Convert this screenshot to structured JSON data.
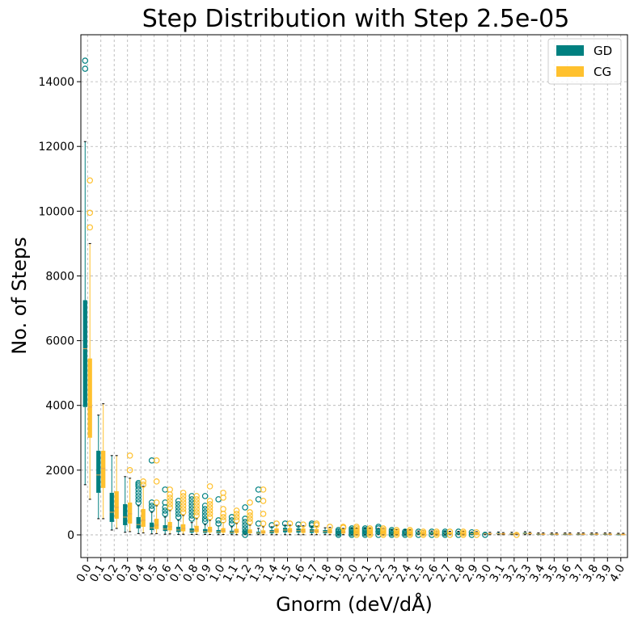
{
  "chart_data": {
    "type": "box",
    "title": "Step Distribution with Step 2.5e-05",
    "xlabel": "Gnorm (deV/dÅ)",
    "ylabel": "No. of Steps",
    "ylim": [
      -700,
      15450
    ],
    "yticks": [
      0,
      2000,
      4000,
      6000,
      8000,
      10000,
      12000,
      14000
    ],
    "categories": [
      "0.0",
      "0.1",
      "0.2",
      "0.3",
      "0.4",
      "0.5",
      "0.6",
      "0.7",
      "0.8",
      "0.9",
      "1.0",
      "1.1",
      "1.2",
      "1.3",
      "1.4",
      "1.5",
      "1.6",
      "1.7",
      "1.8",
      "1.9",
      "2.0",
      "2.1",
      "2.2",
      "2.3",
      "2.4",
      "2.5",
      "2.6",
      "2.7",
      "2.8",
      "2.9",
      "3.0",
      "3.1",
      "3.2",
      "3.3",
      "3.4",
      "3.5",
      "3.6",
      "3.7",
      "3.8",
      "3.9",
      "4.0"
    ],
    "grid": true,
    "legend": "top-right",
    "series": [
      {
        "name": "GD",
        "color": "#008080",
        "boxes": [
          {
            "min": 1550,
            "q1": 3950,
            "median": 5750,
            "q3": 7250,
            "max": 12150,
            "outliers": [
              14400,
              14650
            ]
          },
          {
            "min": 500,
            "q1": 1300,
            "median": 1850,
            "q3": 2600,
            "max": 3700,
            "outliers": []
          },
          {
            "min": 150,
            "q1": 400,
            "median": 700,
            "q3": 1300,
            "max": 2450,
            "outliers": []
          },
          {
            "min": 80,
            "q1": 300,
            "median": 550,
            "q3": 950,
            "max": 1800,
            "outliers": []
          },
          {
            "min": 40,
            "q1": 200,
            "median": 320,
            "q3": 550,
            "max": 900,
            "outliers": [
              1000,
              1100,
              1200,
              1300,
              1400,
              1500,
              1550,
              1600
            ]
          },
          {
            "min": 30,
            "q1": 150,
            "median": 220,
            "q3": 380,
            "max": 700,
            "outliers": [
              800,
              900,
              1000,
              2300
            ]
          },
          {
            "min": 20,
            "q1": 120,
            "median": 180,
            "q3": 300,
            "max": 550,
            "outliers": [
              650,
              750,
              850,
              1000,
              1400
            ]
          },
          {
            "min": 15,
            "q1": 90,
            "median": 150,
            "q3": 250,
            "max": 450,
            "outliers": [
              550,
              650,
              750,
              850,
              950,
              1050
            ]
          },
          {
            "min": 10,
            "q1": 70,
            "median": 120,
            "q3": 200,
            "max": 380,
            "outliers": [
              500,
              600,
              700,
              800,
              900,
              1000,
              1100,
              1200
            ]
          },
          {
            "min": 10,
            "q1": 60,
            "median": 100,
            "q3": 180,
            "max": 320,
            "outliers": [
              420,
              500,
              600,
              700,
              800,
              900,
              1200
            ]
          },
          {
            "min": 5,
            "q1": 50,
            "median": 90,
            "q3": 150,
            "max": 280,
            "outliers": [
              350,
              450,
              1100
            ]
          },
          {
            "min": 5,
            "q1": 40,
            "median": 80,
            "q3": 130,
            "max": 250,
            "outliers": [
              350,
              450,
              550
            ]
          },
          {
            "min": 5,
            "q1": 35,
            "median": 70,
            "q3": 120,
            "max": 220,
            "outliers": [
              0,
              100,
              200,
              300,
              400,
              500,
              850
            ]
          },
          {
            "min": 5,
            "q1": 30,
            "median": 60,
            "q3": 100,
            "max": 200,
            "outliers": [
              350,
              1100,
              1400
            ]
          },
          {
            "min": 5,
            "q1": 50,
            "median": 100,
            "q3": 150,
            "max": 250,
            "outliers": [
              300
            ]
          },
          {
            "min": 5,
            "q1": 80,
            "median": 150,
            "q3": 220,
            "max": 300,
            "outliers": [
              350
            ]
          },
          {
            "min": 5,
            "q1": 70,
            "median": 130,
            "q3": 200,
            "max": 280,
            "outliers": [
              320
            ]
          },
          {
            "min": 5,
            "q1": 60,
            "median": 120,
            "q3": 180,
            "max": 250,
            "outliers": [
              300,
              350
            ]
          },
          {
            "min": 5,
            "q1": 50,
            "median": 100,
            "q3": 150,
            "max": 220,
            "outliers": []
          },
          {
            "min": 5,
            "q1": 40,
            "median": 80,
            "q3": 120,
            "max": 180,
            "outliers": [
              0,
              50,
              100,
              150
            ]
          },
          {
            "min": 5,
            "q1": 40,
            "median": 80,
            "q3": 130,
            "max": 200,
            "outliers": [
              0,
              50,
              100,
              150,
              200
            ]
          },
          {
            "min": 5,
            "q1": 40,
            "median": 80,
            "q3": 130,
            "max": 200,
            "outliers": [
              0,
              50,
              100,
              150,
              200
            ]
          },
          {
            "min": 5,
            "q1": 40,
            "median": 80,
            "q3": 130,
            "max": 200,
            "outliers": [
              0,
              100,
              200,
              250
            ]
          },
          {
            "min": 5,
            "q1": 30,
            "median": 60,
            "q3": 100,
            "max": 150,
            "outliers": [
              0,
              50,
              100,
              150
            ]
          },
          {
            "min": 5,
            "q1": 30,
            "median": 60,
            "q3": 100,
            "max": 150,
            "outliers": [
              0,
              50,
              100
            ]
          },
          {
            "min": 5,
            "q1": 30,
            "median": 50,
            "q3": 80,
            "max": 120,
            "outliers": [
              0,
              100
            ]
          },
          {
            "min": 5,
            "q1": 30,
            "median": 50,
            "q3": 80,
            "max": 120,
            "outliers": [
              0,
              100
            ]
          },
          {
            "min": 5,
            "q1": 25,
            "median": 45,
            "q3": 70,
            "max": 110,
            "outliers": [
              0,
              50,
              100
            ]
          },
          {
            "min": 5,
            "q1": 25,
            "median": 45,
            "q3": 70,
            "max": 110,
            "outliers": [
              0,
              100
            ]
          },
          {
            "min": 5,
            "q1": 20,
            "median": 40,
            "q3": 60,
            "max": 90,
            "outliers": [
              0,
              80
            ]
          },
          {
            "min": 5,
            "q1": 20,
            "median": 35,
            "q3": 55,
            "max": 80,
            "outliers": [
              0
            ]
          },
          {
            "min": 5,
            "q1": 20,
            "median": 35,
            "q3": 60,
            "max": 90,
            "outliers": []
          },
          {
            "min": 5,
            "q1": 20,
            "median": 30,
            "q3": 50,
            "max": 80,
            "outliers": []
          },
          {
            "min": 5,
            "q1": 25,
            "median": 45,
            "q3": 70,
            "max": 100,
            "outliers": []
          },
          {
            "min": 5,
            "q1": 15,
            "median": 25,
            "q3": 40,
            "max": 60,
            "outliers": []
          },
          {
            "min": 5,
            "q1": 15,
            "median": 25,
            "q3": 40,
            "max": 60,
            "outliers": []
          },
          {
            "min": 5,
            "q1": 15,
            "median": 25,
            "q3": 40,
            "max": 60,
            "outliers": []
          },
          {
            "min": 5,
            "q1": 15,
            "median": 25,
            "q3": 40,
            "max": 60,
            "outliers": []
          },
          {
            "min": 5,
            "q1": 15,
            "median": 25,
            "q3": 40,
            "max": 60,
            "outliers": []
          },
          {
            "min": 5,
            "q1": 15,
            "median": 25,
            "q3": 40,
            "max": 60,
            "outliers": []
          },
          {
            "min": 5,
            "q1": 10,
            "median": 20,
            "q3": 30,
            "max": 50,
            "outliers": []
          }
        ]
      },
      {
        "name": "CG",
        "color": "#ffc12e",
        "boxes": [
          {
            "min": 1100,
            "q1": 3000,
            "median": 3950,
            "q3": 5450,
            "max": 9000,
            "outliers": [
              9500,
              9950,
              10950
            ]
          },
          {
            "min": 500,
            "q1": 1450,
            "median": 2050,
            "q3": 2600,
            "max": 4050,
            "outliers": []
          },
          {
            "min": 200,
            "q1": 500,
            "median": 850,
            "q3": 1350,
            "max": 2450,
            "outliers": []
          },
          {
            "min": 100,
            "q1": 350,
            "median": 650,
            "q3": 1000,
            "max": 1750,
            "outliers": [
              2000,
              2450
            ]
          },
          {
            "min": 60,
            "q1": 250,
            "median": 450,
            "q3": 800,
            "max": 1500,
            "outliers": [
              1550,
              1650
            ]
          },
          {
            "min": 40,
            "q1": 180,
            "median": 300,
            "q3": 500,
            "max": 900,
            "outliers": [
              1000,
              1650,
              2300
            ]
          },
          {
            "min": 30,
            "q1": 140,
            "median": 250,
            "q3": 400,
            "max": 750,
            "outliers": [
              850,
              950,
              1050,
              1150,
              1250,
              1400
            ]
          },
          {
            "min": 20,
            "q1": 110,
            "median": 200,
            "q3": 330,
            "max": 600,
            "outliers": [
              700,
              800,
              900,
              1000,
              1100,
              1200,
              1300
            ]
          },
          {
            "min": 15,
            "q1": 90,
            "median": 170,
            "q3": 280,
            "max": 500,
            "outliers": [
              600,
              700,
              800,
              900,
              1000,
              1100,
              1200
            ]
          },
          {
            "min": 10,
            "q1": 80,
            "median": 150,
            "q3": 250,
            "max": 450,
            "outliers": [
              550,
              650,
              750,
              850,
              950,
              1050,
              1500
            ]
          },
          {
            "min": 10,
            "q1": 70,
            "median": 130,
            "q3": 210,
            "max": 380,
            "outliers": [
              450,
              550,
              650,
              800,
              1150,
              1300
            ]
          },
          {
            "min": 5,
            "q1": 60,
            "median": 110,
            "q3": 190,
            "max": 350,
            "outliers": [
              450,
              550,
              650,
              750
            ]
          },
          {
            "min": 5,
            "q1": 50,
            "median": 100,
            "q3": 170,
            "max": 300,
            "outliers": [
              400,
              500,
              600,
              700,
              1000
            ]
          },
          {
            "min": 5,
            "q1": 40,
            "median": 80,
            "q3": 140,
            "max": 250,
            "outliers": [
              350,
              650,
              1050,
              1400
            ]
          },
          {
            "min": 5,
            "q1": 60,
            "median": 120,
            "q3": 200,
            "max": 300,
            "outliers": [
              350
            ]
          },
          {
            "min": 5,
            "q1": 70,
            "median": 130,
            "q3": 210,
            "max": 300,
            "outliers": [
              350
            ]
          },
          {
            "min": 5,
            "q1": 60,
            "median": 120,
            "q3": 200,
            "max": 280,
            "outliers": [
              320
            ]
          },
          {
            "min": 5,
            "q1": 60,
            "median": 110,
            "q3": 180,
            "max": 260,
            "outliers": [
              300,
              350
            ]
          },
          {
            "min": 5,
            "q1": 50,
            "median": 100,
            "q3": 160,
            "max": 230,
            "outliers": [
              250
            ]
          },
          {
            "min": 5,
            "q1": 40,
            "median": 90,
            "q3": 140,
            "max": 200,
            "outliers": [
              220,
              250
            ]
          },
          {
            "min": 5,
            "q1": 40,
            "median": 90,
            "q3": 140,
            "max": 200,
            "outliers": [
              0,
              50,
              100,
              150,
              200,
              250
            ]
          },
          {
            "min": 5,
            "q1": 40,
            "median": 90,
            "q3": 140,
            "max": 200,
            "outliers": [
              0,
              50,
              100,
              150,
              200
            ]
          },
          {
            "min": 5,
            "q1": 40,
            "median": 80,
            "q3": 130,
            "max": 190,
            "outliers": [
              0,
              50,
              100,
              150,
              200
            ]
          },
          {
            "min": 5,
            "q1": 30,
            "median": 70,
            "q3": 110,
            "max": 160,
            "outliers": [
              0,
              50,
              100,
              150
            ]
          },
          {
            "min": 5,
            "q1": 30,
            "median": 60,
            "q3": 100,
            "max": 150,
            "outliers": [
              0,
              50,
              100,
              150
            ]
          },
          {
            "min": 5,
            "q1": 30,
            "median": 55,
            "q3": 90,
            "max": 130,
            "outliers": [
              0,
              50,
              100
            ]
          },
          {
            "min": 5,
            "q1": 30,
            "median": 50,
            "q3": 80,
            "max": 120,
            "outliers": [
              0,
              50,
              100
            ]
          },
          {
            "min": 5,
            "q1": 25,
            "median": 45,
            "q3": 75,
            "max": 110,
            "outliers": [
              0,
              100
            ]
          },
          {
            "min": 5,
            "q1": 25,
            "median": 45,
            "q3": 75,
            "max": 110,
            "outliers": [
              0,
              50,
              100
            ]
          },
          {
            "min": 5,
            "q1": 20,
            "median": 40,
            "q3": 65,
            "max": 100,
            "outliers": [
              0,
              80
            ]
          },
          {
            "min": 5,
            "q1": 20,
            "median": 35,
            "q3": 55,
            "max": 80,
            "outliers": []
          },
          {
            "min": 5,
            "q1": 20,
            "median": 30,
            "q3": 50,
            "max": 70,
            "outliers": []
          },
          {
            "min": 5,
            "q1": 20,
            "median": 30,
            "q3": 50,
            "max": 70,
            "outliers": [
              0
            ]
          },
          {
            "min": 5,
            "q1": 25,
            "median": 40,
            "q3": 60,
            "max": 80,
            "outliers": []
          },
          {
            "min": 5,
            "q1": 15,
            "median": 25,
            "q3": 40,
            "max": 60,
            "outliers": []
          },
          {
            "min": 5,
            "q1": 15,
            "median": 25,
            "q3": 40,
            "max": 60,
            "outliers": []
          },
          {
            "min": 5,
            "q1": 15,
            "median": 25,
            "q3": 40,
            "max": 60,
            "outliers": []
          },
          {
            "min": 5,
            "q1": 15,
            "median": 25,
            "q3": 40,
            "max": 60,
            "outliers": []
          },
          {
            "min": 5,
            "q1": 15,
            "median": 25,
            "q3": 40,
            "max": 60,
            "outliers": []
          },
          {
            "min": 5,
            "q1": 15,
            "median": 25,
            "q3": 40,
            "max": 60,
            "outliers": []
          },
          {
            "min": 5,
            "q1": 10,
            "median": 20,
            "q3": 30,
            "max": 50,
            "outliers": []
          }
        ]
      }
    ]
  }
}
